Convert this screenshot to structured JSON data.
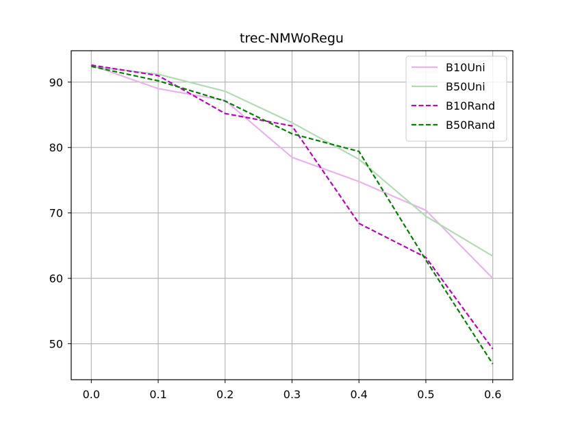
{
  "chart_data": {
    "type": "line",
    "title": "trec-NMWoRegu",
    "xlabel": "",
    "ylabel": "",
    "x": [
      0.0,
      0.1,
      0.2,
      0.3,
      0.4,
      0.5,
      0.6
    ],
    "xticks": [
      "0.0",
      "0.1",
      "0.2",
      "0.3",
      "0.4",
      "0.5",
      "0.6"
    ],
    "yticks": [
      "50",
      "60",
      "70",
      "80",
      "90"
    ],
    "xlim": [
      -0.03,
      0.63
    ],
    "ylim": [
      44.5,
      94.8
    ],
    "grid": true,
    "legend_position": "top-right",
    "series": [
      {
        "name": "B10Uni",
        "color": "#e8b2ea",
        "dash": "solid",
        "values": [
          92.6,
          89.0,
          87.2,
          78.5,
          74.8,
          70.4,
          60.0
        ]
      },
      {
        "name": "B50Uni",
        "color": "#b3dbb3",
        "dash": "solid",
        "values": [
          92.4,
          91.2,
          88.6,
          83.8,
          78.2,
          69.5,
          63.4
        ]
      },
      {
        "name": "B10Rand",
        "color": "#bf00bf",
        "dash": "dashed",
        "values": [
          92.6,
          91.0,
          85.2,
          83.3,
          68.4,
          63.2,
          49.2
        ]
      },
      {
        "name": "B50Rand",
        "color": "#008000",
        "dash": "dashed",
        "values": [
          92.4,
          90.2,
          87.1,
          82.1,
          79.4,
          62.8,
          46.9
        ]
      }
    ]
  }
}
